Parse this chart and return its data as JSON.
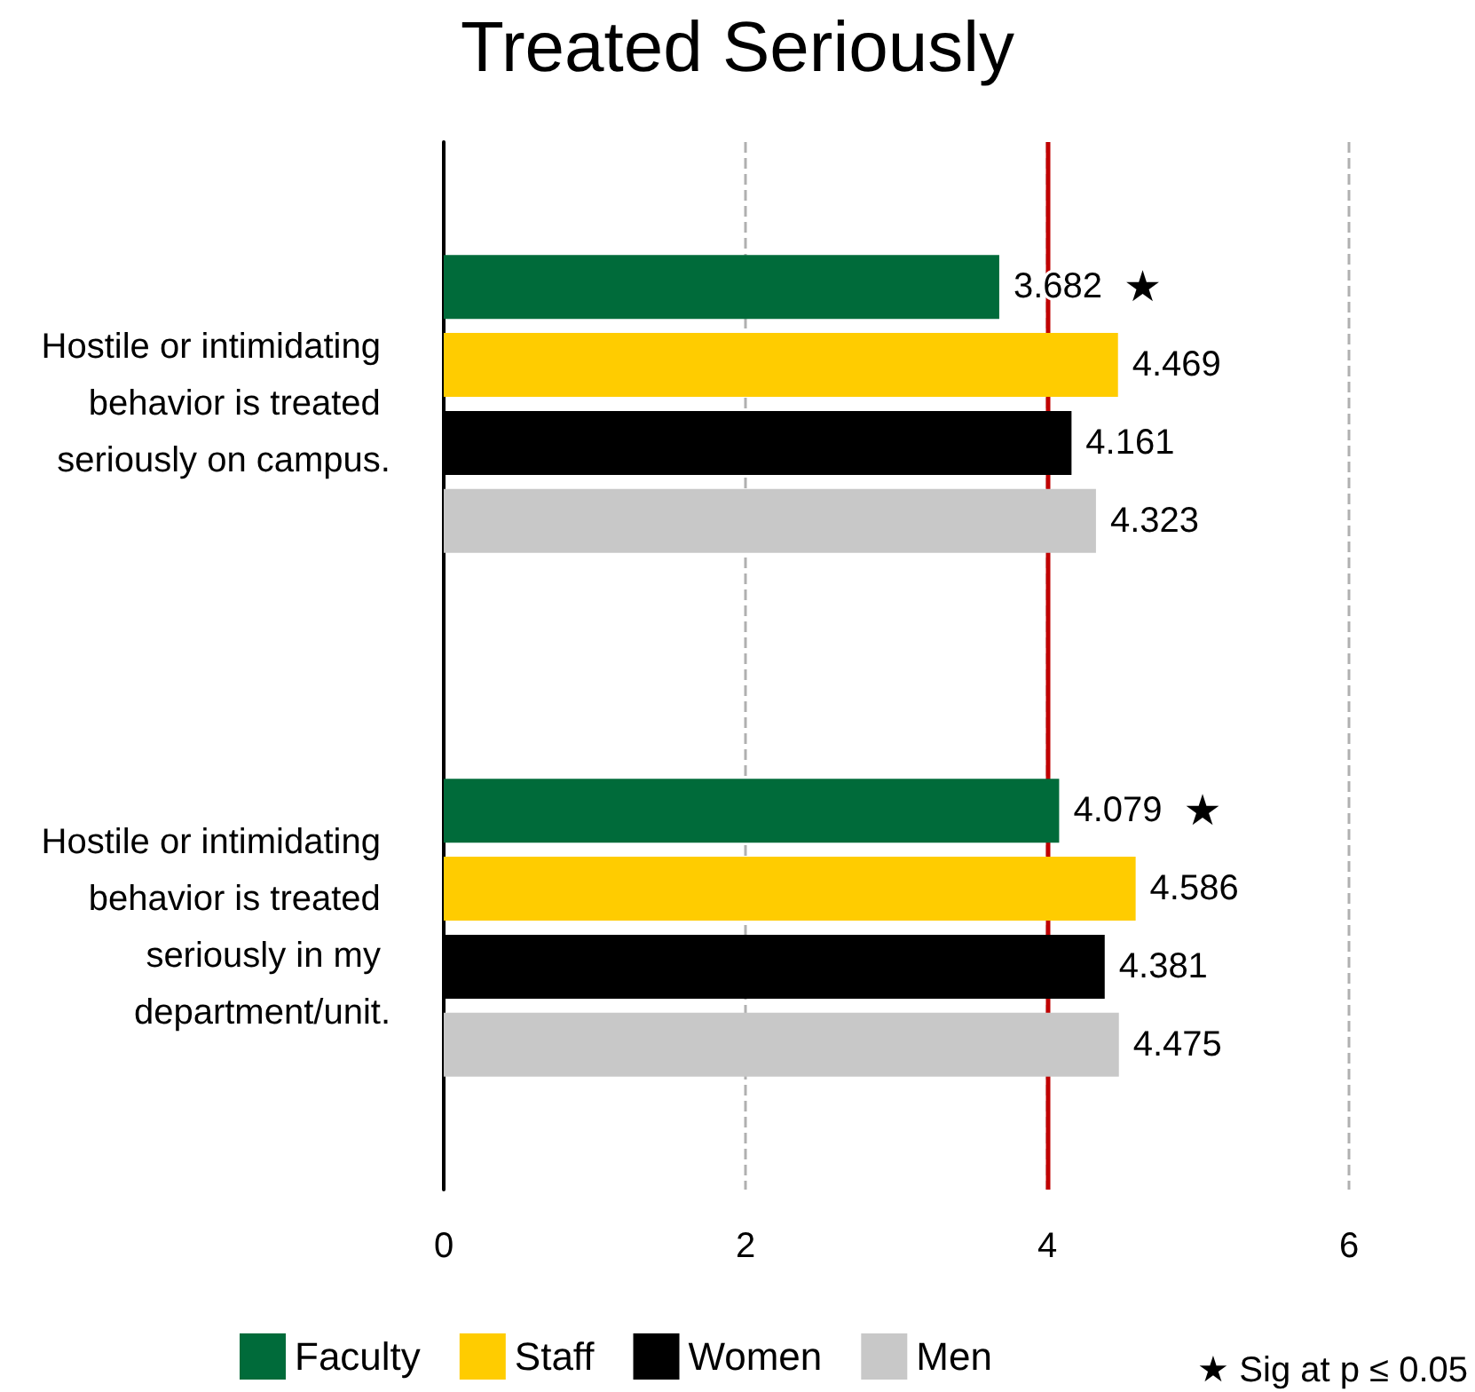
{
  "chart_data": {
    "type": "bar",
    "orientation": "horizontal",
    "title": "Treated Seriously",
    "categories": [
      "Hostile or intimidating behavior is treated seriously on campus.",
      "Hostile or intimidating behavior is treated seriously in my department/unit."
    ],
    "series": [
      {
        "name": "Faculty",
        "color": "#006b3a",
        "values": [
          3.682,
          4.079
        ]
      },
      {
        "name": "Staff",
        "color": "#ffcc00",
        "values": [
          4.469,
          4.586
        ]
      },
      {
        "name": "Women",
        "color": "#000000",
        "values": [
          4.161,
          4.381
        ]
      },
      {
        "name": "Men",
        "color": "#c8c8c8",
        "values": [
          4.323,
          4.475
        ]
      }
    ],
    "xlim": [
      0,
      6
    ],
    "xticks": [
      0,
      2,
      4,
      6
    ],
    "grid": "x",
    "data_labels": true,
    "legend": "bottom",
    "ref_lines": [
      {
        "axis": "x",
        "value": 4,
        "color": "#c00000"
      }
    ],
    "annotations": [
      "★",
      "★",
      "★ Sig at p ≤ 0.05"
    ]
  }
}
